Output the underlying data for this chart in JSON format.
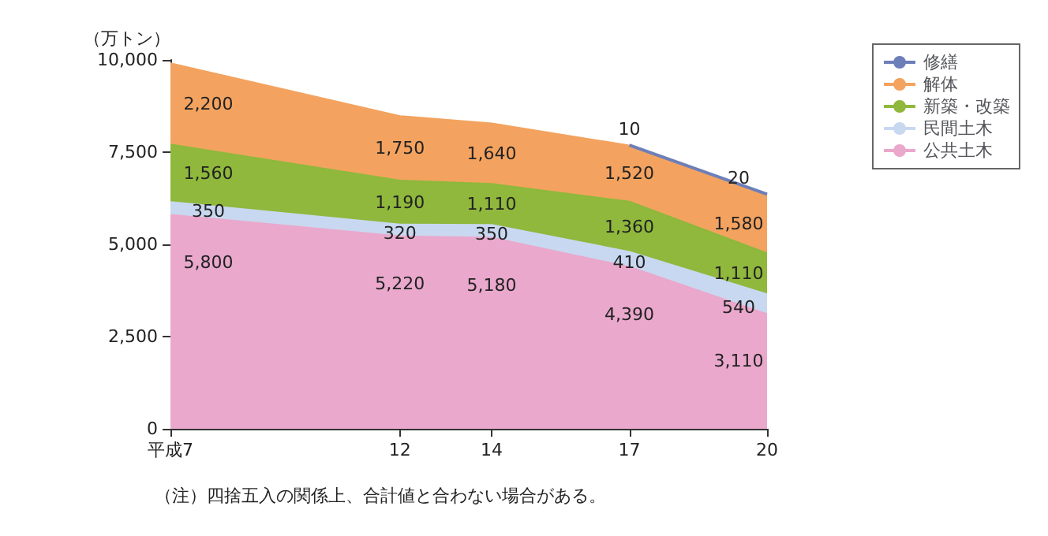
{
  "chart_data": {
    "type": "area",
    "stacked": true,
    "ylabel": "（万トン）",
    "x": [
      7,
      12,
      14,
      17,
      20
    ],
    "xlim": [
      7,
      20
    ],
    "xticks": [
      {
        "value": 7,
        "label": "平成7"
      },
      12,
      14,
      17,
      20
    ],
    "ylim": [
      0,
      10000
    ],
    "yticks": [
      {
        "value": 0,
        "label": "0"
      },
      {
        "value": 2500,
        "label": "2,500"
      },
      {
        "value": 5000,
        "label": "5,000"
      },
      {
        "value": 7500,
        "label": "7,500"
      },
      {
        "value": 10000,
        "label": "10,000"
      }
    ],
    "series": [
      {
        "name": "公共土木",
        "color": "#eaa8cc",
        "values": [
          5800,
          5220,
          5180,
          4390,
          3110
        ],
        "value_labels": [
          "5,800",
          "5,220",
          "5,180",
          "4,390",
          "3,110"
        ]
      },
      {
        "name": "民間土木",
        "color": "#c8d8f0",
        "values": [
          350,
          320,
          350,
          410,
          540
        ],
        "value_labels": [
          "350",
          "320",
          "350",
          "410",
          "540"
        ]
      },
      {
        "name": "新築・改築",
        "color": "#8fb83c",
        "values": [
          1560,
          1190,
          1110,
          1360,
          1110
        ],
        "value_labels": [
          "1,560",
          "1,190",
          "1,110",
          "1,360",
          "1,110"
        ]
      },
      {
        "name": "解体",
        "color": "#f3a35f",
        "values": [
          2200,
          1750,
          1640,
          1520,
          1580
        ],
        "value_labels": [
          "2,200",
          "1,750",
          "1,640",
          "1,520",
          "1,580"
        ]
      },
      {
        "name": "修繕",
        "color": "#6d7fb8",
        "values": [
          null,
          null,
          null,
          10,
          20
        ],
        "value_labels": [
          null,
          null,
          null,
          "10",
          "20"
        ]
      }
    ],
    "legend": "top right",
    "grid": false,
    "annotations": [
      "（注）四捨五入の関係上、合計値と合わない場合がある。"
    ]
  }
}
